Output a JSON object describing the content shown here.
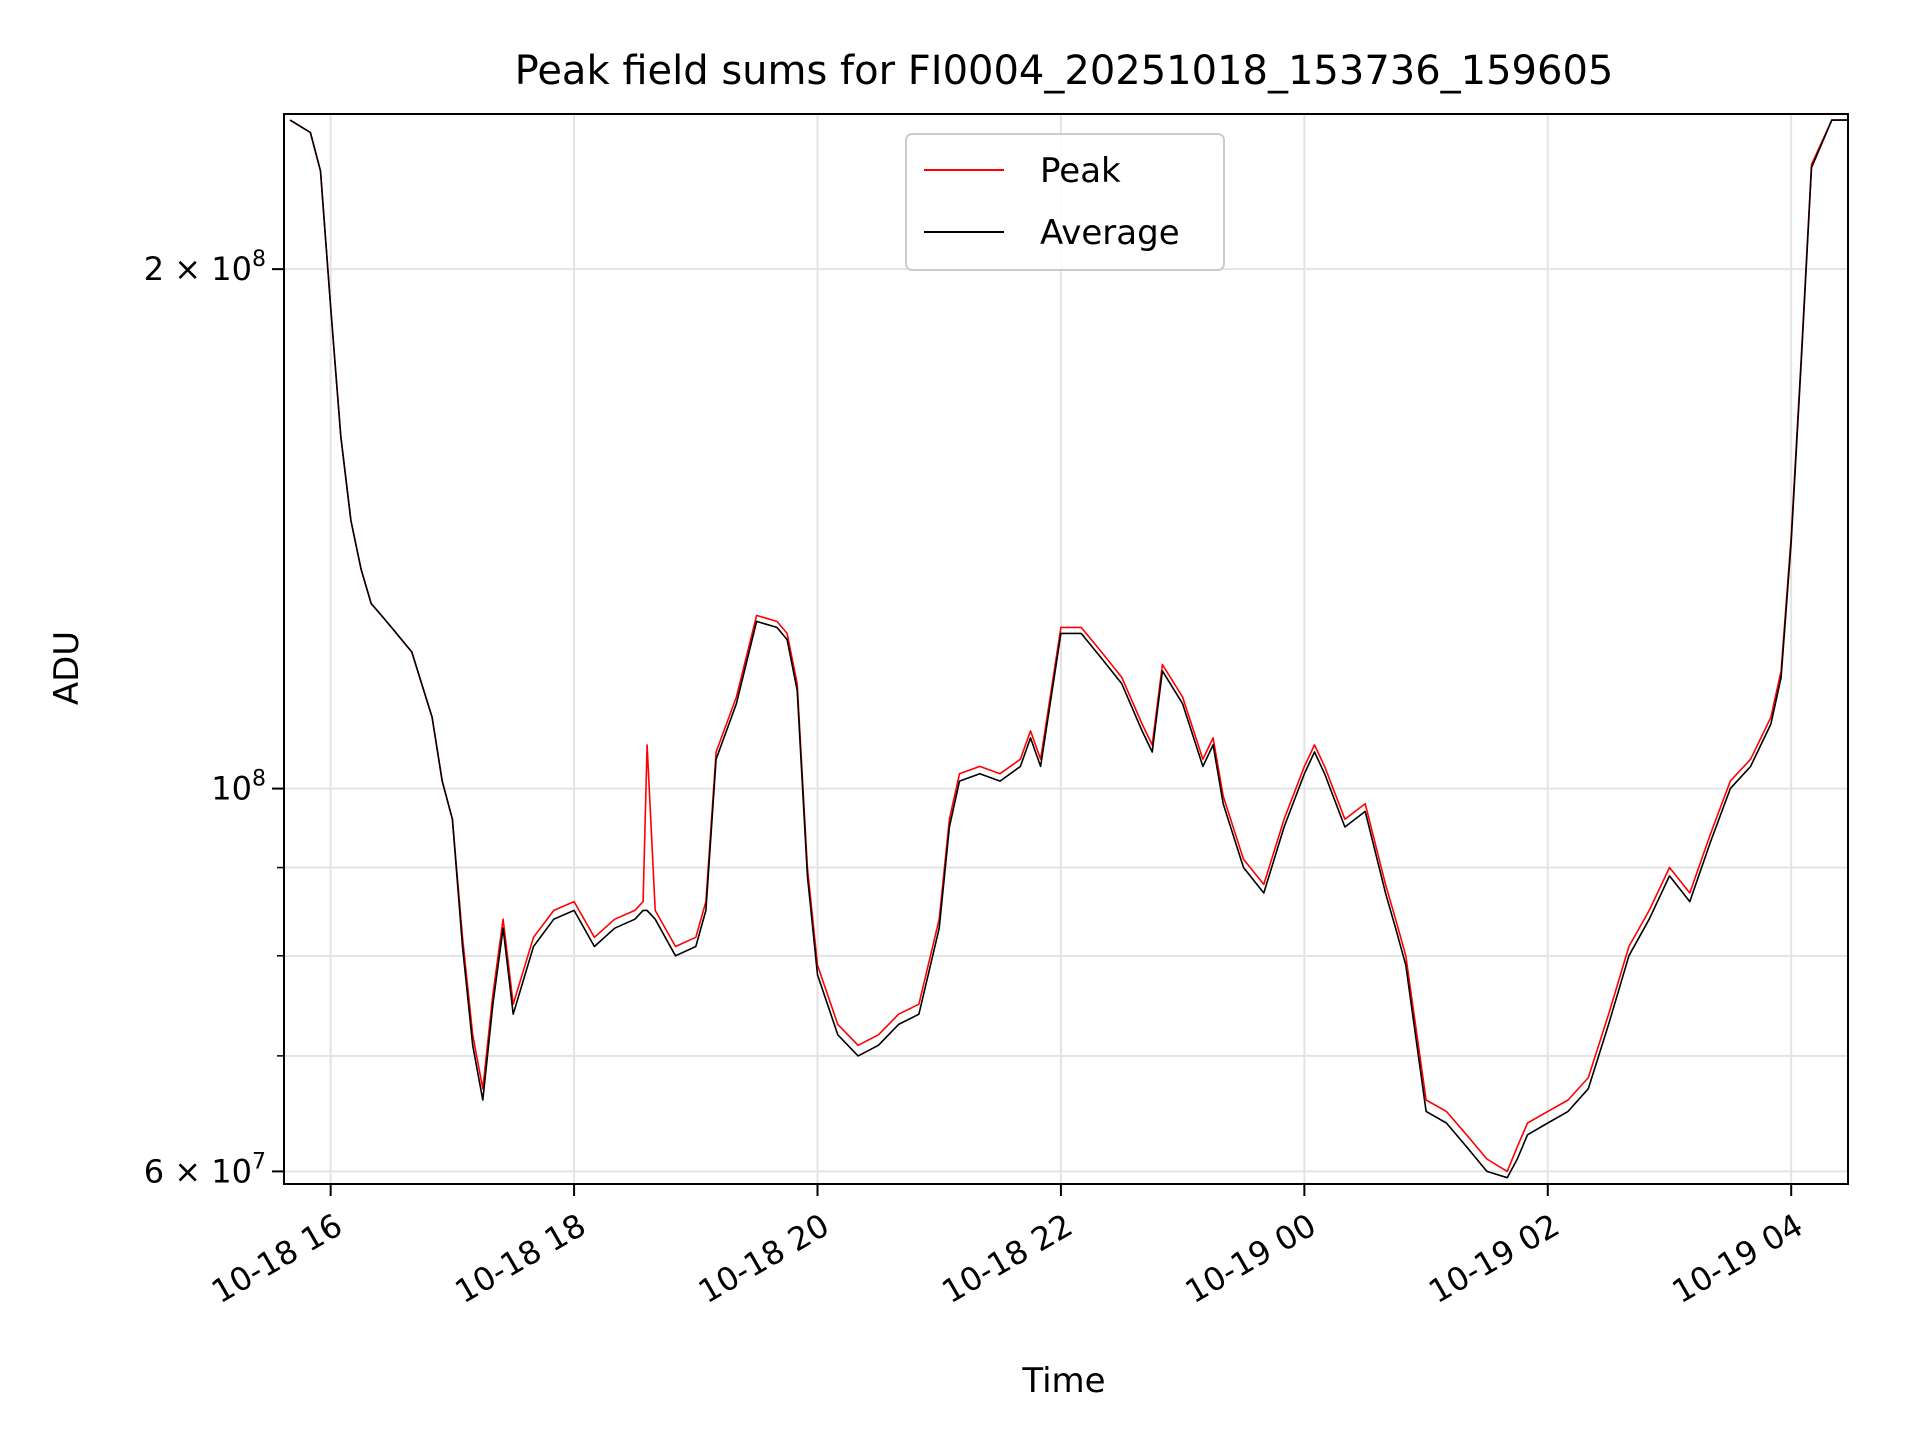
{
  "chart_data": {
    "type": "line",
    "title": "Peak field sums for FI0004_20251018_153736_159605",
    "xlabel": "Time",
    "ylabel": "ADU",
    "x_scale": "time",
    "y_scale": "log",
    "xlim": [
      "2025-10-18 15:37",
      "2025-10-19 04:28"
    ],
    "ylim": [
      59000000,
      246000000
    ],
    "x_ticks": [
      {
        "at": "2025-10-18 16:00",
        "label": "10-18 16"
      },
      {
        "at": "2025-10-18 18:00",
        "label": "10-18 18"
      },
      {
        "at": "2025-10-18 20:00",
        "label": "10-18 20"
      },
      {
        "at": "2025-10-18 22:00",
        "label": "10-18 22"
      },
      {
        "at": "2025-10-19 00:00",
        "label": "10-19 00"
      },
      {
        "at": "2025-10-19 02:00",
        "label": "10-19 02"
      },
      {
        "at": "2025-10-19 04:00",
        "label": "10-19 04"
      }
    ],
    "y_ticks": [
      {
        "value": 60000000,
        "label": "6 × 10",
        "exp": "7"
      },
      {
        "value": 100000000,
        "label": "10",
        "exp": "8"
      },
      {
        "value": 200000000,
        "label": "2 × 10",
        "exp": "8"
      }
    ],
    "y_minor_gridlines": [
      70000000,
      80000000,
      90000000
    ],
    "grid": true,
    "legend_position": "top-center",
    "series": [
      {
        "name": "Peak",
        "color": "#ff0000",
        "x": [
          "2025-10-18 15:40",
          "2025-10-18 15:50",
          "2025-10-18 15:55",
          "2025-10-18 16:00",
          "2025-10-18 16:05",
          "2025-10-18 16:10",
          "2025-10-18 16:15",
          "2025-10-18 16:20",
          "2025-10-18 16:25",
          "2025-10-18 16:30",
          "2025-10-18 16:40",
          "2025-10-18 16:50",
          "2025-10-18 16:55",
          "2025-10-18 17:00",
          "2025-10-18 17:05",
          "2025-10-18 17:10",
          "2025-10-18 17:15",
          "2025-10-18 17:20",
          "2025-10-18 17:25",
          "2025-10-18 17:30",
          "2025-10-18 17:40",
          "2025-10-18 17:50",
          "2025-10-18 18:00",
          "2025-10-18 18:10",
          "2025-10-18 18:20",
          "2025-10-18 18:30",
          "2025-10-18 18:34",
          "2025-10-18 18:36",
          "2025-10-18 18:40",
          "2025-10-18 18:50",
          "2025-10-18 19:00",
          "2025-10-18 19:05",
          "2025-10-18 19:10",
          "2025-10-18 19:20",
          "2025-10-18 19:30",
          "2025-10-18 19:40",
          "2025-10-18 19:45",
          "2025-10-18 19:50",
          "2025-10-18 19:55",
          "2025-10-18 20:00",
          "2025-10-18 20:10",
          "2025-10-18 20:20",
          "2025-10-18 20:30",
          "2025-10-18 20:40",
          "2025-10-18 20:50",
          "2025-10-18 21:00",
          "2025-10-18 21:05",
          "2025-10-18 21:10",
          "2025-10-18 21:20",
          "2025-10-18 21:30",
          "2025-10-18 21:40",
          "2025-10-18 21:45",
          "2025-10-18 21:50",
          "2025-10-18 22:00",
          "2025-10-18 22:10",
          "2025-10-18 22:20",
          "2025-10-18 22:30",
          "2025-10-18 22:40",
          "2025-10-18 22:45",
          "2025-10-18 22:50",
          "2025-10-18 23:00",
          "2025-10-18 23:10",
          "2025-10-18 23:15",
          "2025-10-18 23:20",
          "2025-10-18 23:30",
          "2025-10-18 23:40",
          "2025-10-18 23:50",
          "2025-10-19 00:00",
          "2025-10-19 00:05",
          "2025-10-19 00:10",
          "2025-10-19 00:20",
          "2025-10-19 00:30",
          "2025-10-19 00:40",
          "2025-10-19 00:45",
          "2025-10-19 00:50",
          "2025-10-19 01:00",
          "2025-10-19 01:10",
          "2025-10-19 01:20",
          "2025-10-19 01:30",
          "2025-10-19 01:40",
          "2025-10-19 01:45",
          "2025-10-19 01:50",
          "2025-10-19 02:00",
          "2025-10-19 02:10",
          "2025-10-19 02:20",
          "2025-10-19 02:30",
          "2025-10-19 02:40",
          "2025-10-19 02:50",
          "2025-10-19 03:00",
          "2025-10-19 03:10",
          "2025-10-19 03:20",
          "2025-10-19 03:30",
          "2025-10-19 03:40",
          "2025-10-19 03:50",
          "2025-10-19 03:55",
          "2025-10-19 04:00",
          "2025-10-19 04:05",
          "2025-10-19 04:10",
          "2025-10-19 04:20",
          "2025-10-19 04:28"
        ],
        "values": [
          244000000,
          240000000,
          228000000,
          190000000,
          160000000,
          143000000,
          134000000,
          128000000,
          126000000,
          124000000,
          120000000,
          110000000,
          101000000,
          96000000,
          82000000,
          72000000,
          67000000,
          76000000,
          84000000,
          75000000,
          82000000,
          85000000,
          86000000,
          82000000,
          84000000,
          85000000,
          86000000,
          106000000,
          85000000,
          81000000,
          82000000,
          86000000,
          105000000,
          113000000,
          126000000,
          125000000,
          123000000,
          115000000,
          90000000,
          79000000,
          73000000,
          71000000,
          72000000,
          74000000,
          75000000,
          84000000,
          96000000,
          102000000,
          103000000,
          102000000,
          104000000,
          108000000,
          104000000,
          124000000,
          124000000,
          120000000,
          116000000,
          109000000,
          106000000,
          118000000,
          113000000,
          104000000,
          107000000,
          99000000,
          91000000,
          88000000,
          96000000,
          103000000,
          106000000,
          103000000,
          96000000,
          98000000,
          88000000,
          84000000,
          80000000,
          66000000,
          65000000,
          63000000,
          61000000,
          60000000,
          62000000,
          64000000,
          65000000,
          66000000,
          68000000,
          74000000,
          81000000,
          85000000,
          90000000,
          87000000,
          94000000,
          101000000,
          104000000,
          110000000,
          117000000,
          140000000,
          178000000,
          230000000,
          244000000,
          244000000
        ]
      },
      {
        "name": "Average",
        "color": "#000000",
        "x": [
          "2025-10-18 15:40",
          "2025-10-18 15:50",
          "2025-10-18 15:55",
          "2025-10-18 16:00",
          "2025-10-18 16:05",
          "2025-10-18 16:10",
          "2025-10-18 16:15",
          "2025-10-18 16:20",
          "2025-10-18 16:25",
          "2025-10-18 16:30",
          "2025-10-18 16:40",
          "2025-10-18 16:50",
          "2025-10-18 16:55",
          "2025-10-18 17:00",
          "2025-10-18 17:05",
          "2025-10-18 17:10",
          "2025-10-18 17:15",
          "2025-10-18 17:20",
          "2025-10-18 17:25",
          "2025-10-18 17:30",
          "2025-10-18 17:40",
          "2025-10-18 17:50",
          "2025-10-18 18:00",
          "2025-10-18 18:10",
          "2025-10-18 18:20",
          "2025-10-18 18:30",
          "2025-10-18 18:34",
          "2025-10-18 18:36",
          "2025-10-18 18:40",
          "2025-10-18 18:50",
          "2025-10-18 19:00",
          "2025-10-18 19:05",
          "2025-10-18 19:10",
          "2025-10-18 19:20",
          "2025-10-18 19:30",
          "2025-10-18 19:40",
          "2025-10-18 19:45",
          "2025-10-18 19:50",
          "2025-10-18 19:55",
          "2025-10-18 20:00",
          "2025-10-18 20:10",
          "2025-10-18 20:20",
          "2025-10-18 20:30",
          "2025-10-18 20:40",
          "2025-10-18 20:50",
          "2025-10-18 21:00",
          "2025-10-18 21:05",
          "2025-10-18 21:10",
          "2025-10-18 21:20",
          "2025-10-18 21:30",
          "2025-10-18 21:40",
          "2025-10-18 21:45",
          "2025-10-18 21:50",
          "2025-10-18 22:00",
          "2025-10-18 22:10",
          "2025-10-18 22:20",
          "2025-10-18 22:30",
          "2025-10-18 22:40",
          "2025-10-18 22:45",
          "2025-10-18 22:50",
          "2025-10-18 23:00",
          "2025-10-18 23:10",
          "2025-10-18 23:15",
          "2025-10-18 23:20",
          "2025-10-18 23:30",
          "2025-10-18 23:40",
          "2025-10-18 23:50",
          "2025-10-19 00:00",
          "2025-10-19 00:05",
          "2025-10-19 00:10",
          "2025-10-19 00:20",
          "2025-10-19 00:30",
          "2025-10-19 00:40",
          "2025-10-19 00:45",
          "2025-10-19 00:50",
          "2025-10-19 01:00",
          "2025-10-19 01:10",
          "2025-10-19 01:20",
          "2025-10-19 01:30",
          "2025-10-19 01:40",
          "2025-10-19 01:45",
          "2025-10-19 01:50",
          "2025-10-19 02:00",
          "2025-10-19 02:10",
          "2025-10-19 02:20",
          "2025-10-19 02:30",
          "2025-10-19 02:40",
          "2025-10-19 02:50",
          "2025-10-19 03:00",
          "2025-10-19 03:10",
          "2025-10-19 03:20",
          "2025-10-19 03:30",
          "2025-10-19 03:40",
          "2025-10-19 03:50",
          "2025-10-19 03:55",
          "2025-10-19 04:00",
          "2025-10-19 04:05",
          "2025-10-19 04:10",
          "2025-10-19 04:20",
          "2025-10-19 04:28"
        ],
        "values": [
          244000000,
          240000000,
          228000000,
          190000000,
          160000000,
          143000000,
          134000000,
          128000000,
          126000000,
          124000000,
          120000000,
          110000000,
          101000000,
          96000000,
          81000000,
          71000000,
          66000000,
          75000000,
          83000000,
          74000000,
          81000000,
          84000000,
          85000000,
          81000000,
          83000000,
          84000000,
          85000000,
          85000000,
          84000000,
          80000000,
          81000000,
          85000000,
          104000000,
          112000000,
          125000000,
          124000000,
          122000000,
          114000000,
          89000000,
          78000000,
          72000000,
          70000000,
          71000000,
          73000000,
          74000000,
          83000000,
          95000000,
          101000000,
          102000000,
          101000000,
          103000000,
          107000000,
          103000000,
          123000000,
          123000000,
          119000000,
          115000000,
          108000000,
          105000000,
          117000000,
          112000000,
          103000000,
          106000000,
          98000000,
          90000000,
          87000000,
          95000000,
          102000000,
          105000000,
          102000000,
          95000000,
          97000000,
          87000000,
          83000000,
          79000000,
          65000000,
          64000000,
          62000000,
          60000000,
          59500000,
          61000000,
          63000000,
          64000000,
          65000000,
          67000000,
          73000000,
          80000000,
          84000000,
          89000000,
          86000000,
          93000000,
          100000000,
          103000000,
          109000000,
          116000000,
          139000000,
          177000000,
          229000000,
          244000000,
          244000000
        ]
      }
    ]
  }
}
